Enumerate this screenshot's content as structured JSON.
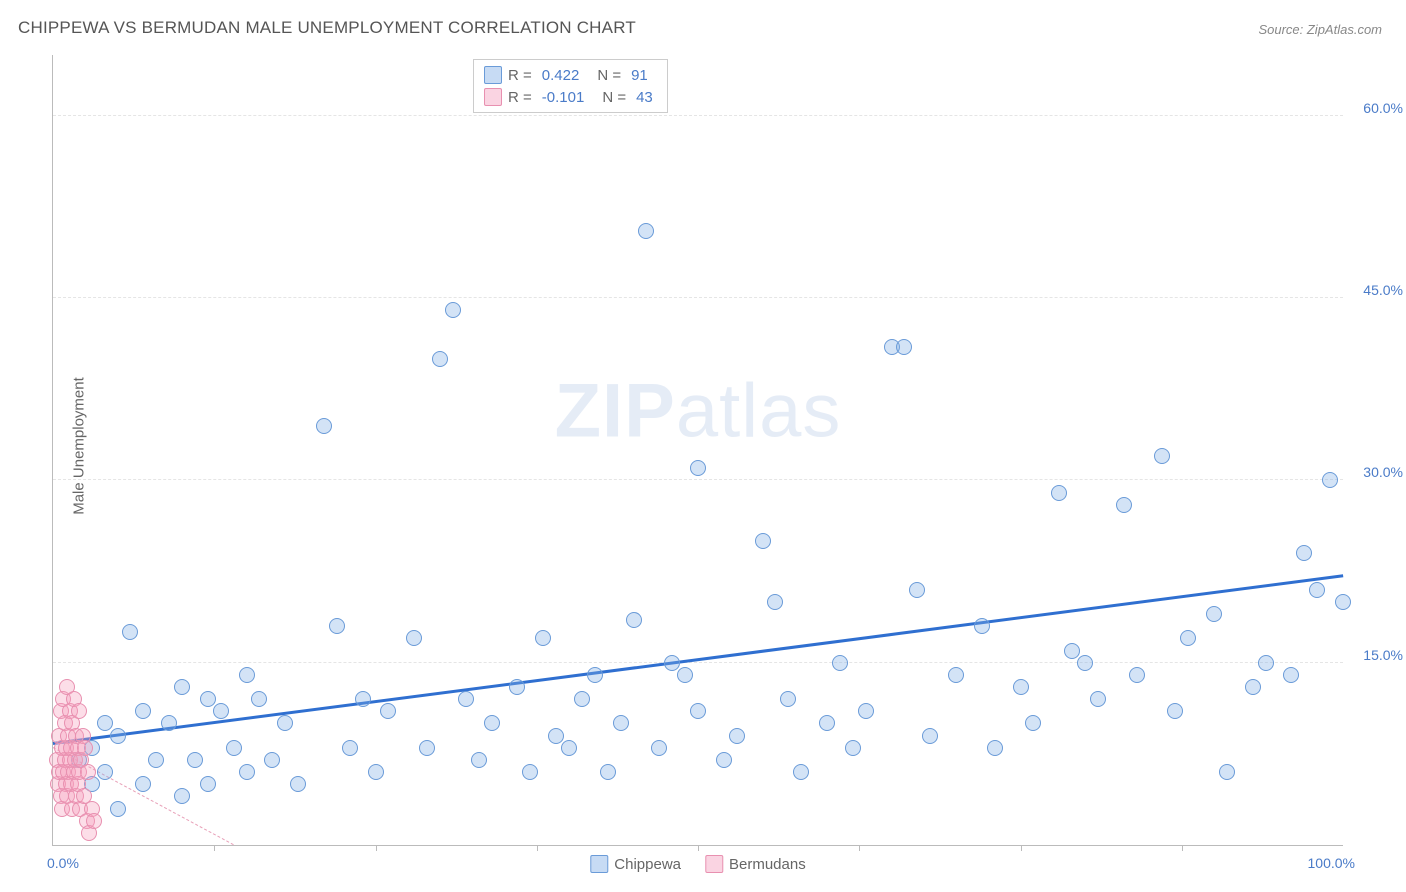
{
  "title": "CHIPPEWA VS BERMUDAN MALE UNEMPLOYMENT CORRELATION CHART",
  "source": "Source: ZipAtlas.com",
  "ylabel": "Male Unemployment",
  "watermark": {
    "bold": "ZIP",
    "light": "atlas"
  },
  "chart": {
    "type": "scatter",
    "background_color": "#ffffff",
    "grid_color": "#e5e5e5",
    "axis_color": "#bbbbbb",
    "xlim": [
      0,
      100
    ],
    "ylim": [
      0,
      65
    ],
    "x_range_labels": {
      "min": "0.0%",
      "max": "100.0%"
    },
    "xtick_positions": [
      12.5,
      25,
      37.5,
      50,
      62.5,
      75,
      87.5
    ],
    "yticks": [
      {
        "value": 15,
        "label": "15.0%"
      },
      {
        "value": 30,
        "label": "30.0%"
      },
      {
        "value": 45,
        "label": "45.0%"
      },
      {
        "value": 60,
        "label": "60.0%"
      }
    ],
    "marker_radius": 8,
    "marker_border_width": 1.2,
    "series": [
      {
        "name": "Chippewa",
        "fill_color": "rgba(130, 175, 230, 0.35)",
        "stroke_color": "#6a9bd8",
        "R": "0.422",
        "N": "91",
        "trend": {
          "x1": 0,
          "y1": 8.2,
          "x2": 100,
          "y2": 22.0,
          "color": "#2f6fd0",
          "width": 3,
          "dash": "solid"
        },
        "points": [
          [
            2,
            7
          ],
          [
            3,
            5
          ],
          [
            3,
            8
          ],
          [
            4,
            6
          ],
          [
            4,
            10
          ],
          [
            5,
            3
          ],
          [
            5,
            9
          ],
          [
            6,
            17.5
          ],
          [
            7,
            5
          ],
          [
            7,
            11
          ],
          [
            8,
            7
          ],
          [
            9,
            10
          ],
          [
            10,
            4
          ],
          [
            10,
            13
          ],
          [
            11,
            7
          ],
          [
            12,
            12
          ],
          [
            12,
            5
          ],
          [
            13,
            11
          ],
          [
            14,
            8
          ],
          [
            15,
            14
          ],
          [
            15,
            6
          ],
          [
            16,
            12
          ],
          [
            17,
            7
          ],
          [
            18,
            10
          ],
          [
            19,
            5
          ],
          [
            21,
            34.5
          ],
          [
            22,
            18
          ],
          [
            23,
            8
          ],
          [
            24,
            12
          ],
          [
            25,
            6
          ],
          [
            26,
            11
          ],
          [
            28,
            17
          ],
          [
            29,
            8
          ],
          [
            30,
            40
          ],
          [
            31,
            44
          ],
          [
            32,
            12
          ],
          [
            33,
            7
          ],
          [
            34,
            10
          ],
          [
            36,
            13
          ],
          [
            37,
            6
          ],
          [
            38,
            17
          ],
          [
            39,
            9
          ],
          [
            40,
            8
          ],
          [
            41,
            12
          ],
          [
            42,
            14
          ],
          [
            43,
            6
          ],
          [
            44,
            10
          ],
          [
            45,
            18.5
          ],
          [
            46,
            50.5
          ],
          [
            47,
            8
          ],
          [
            48,
            15
          ],
          [
            49,
            14
          ],
          [
            50,
            31
          ],
          [
            50,
            11
          ],
          [
            52,
            7
          ],
          [
            53,
            9
          ],
          [
            55,
            25
          ],
          [
            56,
            20
          ],
          [
            57,
            12
          ],
          [
            58,
            6
          ],
          [
            60,
            10
          ],
          [
            61,
            15
          ],
          [
            62,
            8
          ],
          [
            63,
            11
          ],
          [
            65,
            41
          ],
          [
            66,
            41
          ],
          [
            67,
            21
          ],
          [
            68,
            9
          ],
          [
            70,
            14
          ],
          [
            72,
            18
          ],
          [
            73,
            8
          ],
          [
            75,
            13
          ],
          [
            76,
            10
          ],
          [
            78,
            29
          ],
          [
            79,
            16
          ],
          [
            80,
            15
          ],
          [
            81,
            12
          ],
          [
            83,
            28
          ],
          [
            84,
            14
          ],
          [
            86,
            32
          ],
          [
            87,
            11
          ],
          [
            88,
            17
          ],
          [
            90,
            19
          ],
          [
            91,
            6
          ],
          [
            93,
            13
          ],
          [
            94,
            15
          ],
          [
            96,
            14
          ],
          [
            97,
            24
          ],
          [
            98,
            21
          ],
          [
            99,
            30
          ],
          [
            100,
            20
          ]
        ]
      },
      {
        "name": "Bermudans",
        "fill_color": "rgba(245, 160, 190, 0.35)",
        "stroke_color": "#e890b0",
        "R": "-0.101",
        "N": "43",
        "trend": {
          "x1": 0,
          "y1": 8.0,
          "x2": 14,
          "y2": 0,
          "color": "#e8a0b8",
          "width": 1.5,
          "dash": "dashed"
        },
        "points": [
          [
            0.3,
            7
          ],
          [
            0.4,
            5
          ],
          [
            0.5,
            9
          ],
          [
            0.5,
            6
          ],
          [
            0.6,
            11
          ],
          [
            0.6,
            4
          ],
          [
            0.7,
            8
          ],
          [
            0.7,
            3
          ],
          [
            0.8,
            12
          ],
          [
            0.8,
            6
          ],
          [
            0.9,
            7
          ],
          [
            0.9,
            10
          ],
          [
            1.0,
            5
          ],
          [
            1.0,
            8
          ],
          [
            1.1,
            13
          ],
          [
            1.1,
            4
          ],
          [
            1.2,
            9
          ],
          [
            1.2,
            6
          ],
          [
            1.3,
            7
          ],
          [
            1.3,
            11
          ],
          [
            1.4,
            5
          ],
          [
            1.4,
            8
          ],
          [
            1.5,
            3
          ],
          [
            1.5,
            10
          ],
          [
            1.6,
            6
          ],
          [
            1.6,
            12
          ],
          [
            1.7,
            7
          ],
          [
            1.8,
            4
          ],
          [
            1.8,
            9
          ],
          [
            1.9,
            8
          ],
          [
            1.9,
            5
          ],
          [
            2.0,
            11
          ],
          [
            2.0,
            6
          ],
          [
            2.1,
            3
          ],
          [
            2.2,
            7
          ],
          [
            2.3,
            9
          ],
          [
            2.4,
            4
          ],
          [
            2.5,
            8
          ],
          [
            2.6,
            2
          ],
          [
            2.7,
            6
          ],
          [
            2.8,
            1
          ],
          [
            3.0,
            3
          ],
          [
            3.2,
            2
          ]
        ]
      }
    ],
    "legend_top": {
      "swatch_blue": {
        "fill": "rgba(130,175,230,0.45)",
        "border": "#6a9bd8"
      },
      "swatch_pink": {
        "fill": "rgba(245,160,190,0.45)",
        "border": "#e890b0"
      },
      "R_label": "R  =",
      "N_label": "N  ="
    },
    "legend_bottom": {
      "items": [
        {
          "swatch": {
            "fill": "rgba(130,175,230,0.45)",
            "border": "#6a9bd8"
          },
          "label": "Chippewa"
        },
        {
          "swatch": {
            "fill": "rgba(245,160,190,0.45)",
            "border": "#e890b0"
          },
          "label": "Bermudans"
        }
      ]
    }
  }
}
